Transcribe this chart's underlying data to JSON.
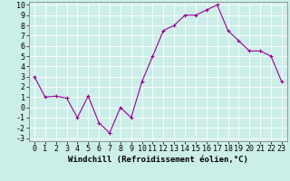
{
  "x": [
    0,
    1,
    2,
    3,
    4,
    5,
    6,
    7,
    8,
    9,
    10,
    11,
    12,
    13,
    14,
    15,
    16,
    17,
    18,
    19,
    20,
    21,
    22,
    23
  ],
  "y": [
    3.0,
    1.0,
    1.1,
    0.9,
    -1.0,
    1.1,
    -1.5,
    -2.5,
    0.0,
    -1.0,
    2.5,
    5.0,
    7.5,
    8.0,
    9.0,
    9.0,
    9.5,
    10.0,
    7.5,
    6.5,
    5.5,
    5.5,
    5.0,
    2.5
  ],
  "line_color": "#990099",
  "marker": "+",
  "marker_size": 3,
  "bg_color": "#cceee8",
  "grid_color": "#ffffff",
  "xlabel": "Windchill (Refroidissement éolien,°C)",
  "xlabel_fontsize": 6.5,
  "tick_fontsize": 6,
  "ylim": [
    -3,
    10
  ],
  "xlim": [
    -0.5,
    23.5
  ],
  "yticks": [
    -3,
    -2,
    -1,
    0,
    1,
    2,
    3,
    4,
    5,
    6,
    7,
    8,
    9,
    10
  ],
  "xticks": [
    0,
    1,
    2,
    3,
    4,
    5,
    6,
    7,
    8,
    9,
    10,
    11,
    12,
    13,
    14,
    15,
    16,
    17,
    18,
    19,
    20,
    21,
    22,
    23
  ],
  "linewidth": 0.8,
  "markeredgewidth": 0.8,
  "spine_color": "#666666"
}
